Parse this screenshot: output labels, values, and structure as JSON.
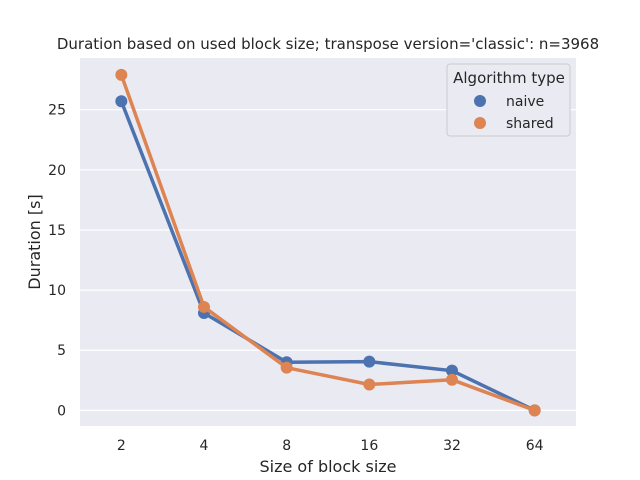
{
  "chart_data": {
    "type": "line",
    "title": "Duration based on used block size; transpose version='classic': n=3968",
    "xlabel": "Size of block size",
    "ylabel": "Duration [s]",
    "categories": [
      "2",
      "4",
      "8",
      "16",
      "32",
      "64"
    ],
    "yticks": [
      "0",
      "5",
      "10",
      "15",
      "20",
      "25"
    ],
    "ylim": [
      -1.3,
      29.3
    ],
    "grid": true,
    "legend": {
      "title": "Algorithm type",
      "placement": "top-right"
    },
    "series": [
      {
        "name": "naive",
        "color": "#4c72b0",
        "values": [
          25.7,
          8.1,
          4.0,
          4.05,
          3.3,
          0.0
        ]
      },
      {
        "name": "shared",
        "color": "#dd8452",
        "values": [
          27.9,
          8.6,
          3.55,
          2.15,
          2.55,
          0.0
        ]
      }
    ]
  }
}
